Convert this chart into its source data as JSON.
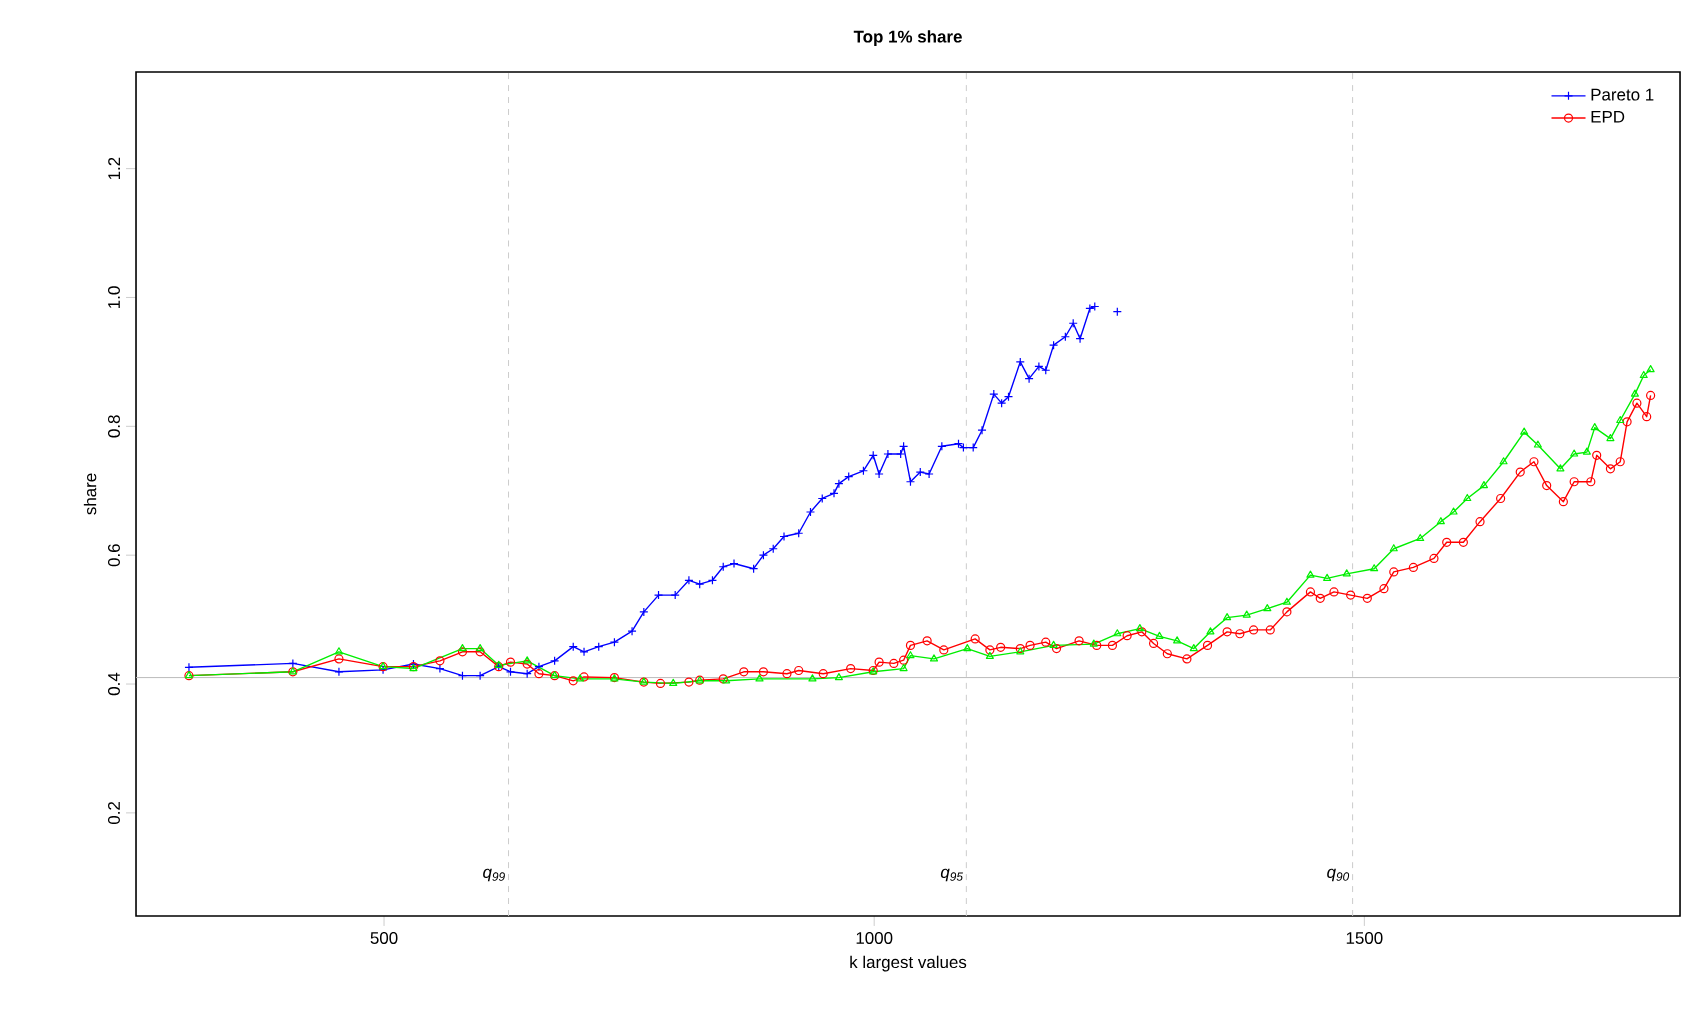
{
  "chart_data": {
    "type": "line",
    "title": "Top 1% share",
    "xlabel": "k largest values",
    "ylabel": "share",
    "xlim": [
      247,
      1822
    ],
    "ylim": [
      0.04,
      1.35
    ],
    "xticks": [
      500,
      1000,
      1500
    ],
    "yticks": [
      0.2,
      0.4,
      0.6,
      0.8,
      {
        "value": 1,
        "label": "1.0"
      },
      1.2
    ],
    "legend": "top right",
    "grid": false,
    "line_style": "solid",
    "ref_lines": [
      {
        "axis": "x",
        "value": 627,
        "label": "q$_{99}$",
        "color": "#cccccc",
        "line_style": "dashed"
      },
      {
        "axis": "x",
        "value": 1094,
        "label": "q$_{95}$",
        "color": "#cccccc",
        "line_style": "dashed"
      },
      {
        "axis": "x",
        "value": 1488,
        "label": "q$_{90}$",
        "color": "#cccccc",
        "line_style": "dashed"
      },
      {
        "axis": "y",
        "value": 0.41,
        "color": "#bbbbbb",
        "line_style": "solid"
      }
    ],
    "series": [
      {
        "name": "Pareto 1",
        "color": "#0000ff",
        "marker": "cross",
        "x": [
          301,
          407,
          454,
          499,
          530,
          557,
          580,
          598,
          617,
          629,
          646,
          658,
          674,
          693,
          704,
          719,
          735,
          753,
          765,
          780,
          797,
          811,
          822,
          835,
          846,
          857,
          877,
          887,
          897,
          908,
          923,
          935,
          947,
          959,
          964,
          974,
          989,
          999,
          1005,
          1014,
          1027,
          1030,
          1037,
          1047,
          1056,
          1069,
          1086,
          1091,
          1101,
          1110,
          1122,
          1130,
          1137,
          1149,
          1158,
          1168,
          1175,
          1183,
          1195,
          1203,
          1210,
          1220,
          1225,
          1236,
          1248
        ],
        "values": [
          0.426,
          0.432,
          0.419,
          0.422,
          0.431,
          0.424,
          0.413,
          0.413,
          0.427,
          0.419,
          0.416,
          0.427,
          0.436,
          0.458,
          0.45,
          0.458,
          0.465,
          0.482,
          0.512,
          0.538,
          0.538,
          0.561,
          0.555,
          0.561,
          0.582,
          0.587,
          0.579,
          0.6,
          0.61,
          0.629,
          0.634,
          0.667,
          0.688,
          0.696,
          0.711,
          0.722,
          0.731,
          0.755,
          0.726,
          0.757,
          0.757,
          0.769,
          0.714,
          0.729,
          0.726,
          0.769,
          0.773,
          0.767,
          0.767,
          0.794,
          0.85,
          0.836,
          0.846,
          0.9,
          0.874,
          0.893,
          0.887,
          0.926,
          0.939,
          0.96,
          0.936,
          0.983,
          0.986,
          null,
          0.978
        ]
      },
      {
        "name": "EPD",
        "color": "#ff0000",
        "marker": "circle",
        "x": [
          301,
          407,
          454,
          499,
          530,
          557,
          580,
          598,
          617,
          629,
          646,
          658,
          674,
          693,
          704,
          735,
          765,
          782,
          811,
          822,
          846,
          867,
          887,
          911,
          923,
          948,
          976,
          999,
          1005,
          1020,
          1030,
          1037,
          1054,
          1071,
          1103,
          1118,
          1129,
          1149,
          1159,
          1175,
          1186,
          1209,
          1227,
          1243,
          1258,
          1273,
          1285,
          1299,
          1319,
          1340,
          1360,
          1373,
          1387,
          1404,
          1421,
          1445,
          1455,
          1469,
          1486,
          1503,
          1520,
          1530,
          1550,
          1571,
          1584,
          1601,
          1618,
          1639,
          1659,
          1673,
          1686,
          1703,
          1714,
          1731,
          1737,
          1751,
          1761,
          1768,
          1778,
          1788,
          1792
        ],
        "values": [
          0.413,
          0.419,
          0.439,
          0.427,
          0.427,
          0.436,
          0.45,
          0.45,
          0.427,
          0.434,
          0.431,
          0.416,
          0.413,
          0.405,
          0.411,
          0.41,
          0.403,
          0.401,
          0.403,
          0.406,
          0.408,
          0.419,
          0.419,
          0.416,
          0.421,
          0.416,
          0.424,
          0.421,
          0.434,
          0.432,
          0.437,
          0.46,
          0.467,
          0.453,
          0.47,
          0.453,
          0.457,
          0.455,
          0.46,
          0.465,
          0.455,
          0.467,
          0.46,
          0.46,
          0.475,
          0.481,
          0.463,
          0.447,
          0.439,
          0.46,
          0.481,
          0.478,
          0.484,
          0.484,
          0.512,
          0.543,
          0.533,
          0.543,
          0.538,
          0.533,
          0.548,
          0.574,
          0.581,
          0.595,
          0.62,
          0.62,
          0.652,
          0.688,
          0.729,
          0.745,
          0.708,
          0.683,
          0.714,
          0.714,
          0.755,
          0.734,
          0.745,
          0.807,
          0.836,
          0.815,
          0.848
        ]
      },
      {
        "color": "#00ee00",
        "marker": "triangle",
        "x": [
          301,
          407,
          454,
          499,
          530,
          580,
          598,
          617,
          646,
          674,
          700,
          735,
          765,
          795,
          822,
          849,
          883,
          937,
          964,
          999,
          1030,
          1037,
          1061,
          1095,
          1118,
          1149,
          1183,
          1224,
          1248,
          1271,
          1291,
          1309,
          1326,
          1343,
          1360,
          1380,
          1401,
          1421,
          1445,
          1462,
          1482,
          1510,
          1530,
          1557,
          1578,
          1591,
          1605,
          1622,
          1642,
          1663,
          1677,
          1700,
          1714,
          1727,
          1735,
          1751,
          1761,
          1776,
          1785,
          1792
        ],
        "values": [
          0.413,
          0.419,
          0.45,
          0.427,
          0.424,
          0.455,
          0.455,
          0.429,
          0.436,
          0.413,
          0.408,
          0.408,
          0.403,
          0.401,
          0.405,
          0.405,
          0.408,
          0.408,
          0.41,
          0.419,
          0.424,
          0.444,
          0.439,
          0.455,
          0.443,
          0.45,
          0.46,
          0.462,
          0.478,
          0.486,
          0.474,
          0.467,
          0.455,
          0.481,
          0.503,
          0.507,
          0.517,
          0.527,
          0.569,
          0.564,
          0.571,
          0.579,
          0.61,
          0.626,
          0.652,
          0.667,
          0.688,
          0.708,
          0.745,
          0.791,
          0.771,
          0.734,
          0.757,
          0.76,
          0.798,
          0.781,
          0.809,
          0.85,
          0.879,
          0.888
        ]
      }
    ]
  }
}
